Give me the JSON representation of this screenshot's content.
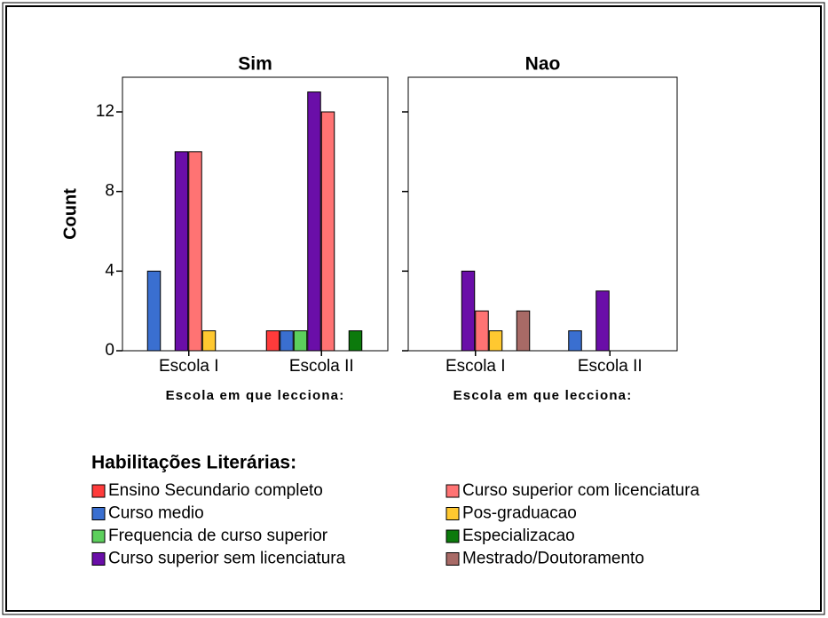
{
  "chart_data": [
    {
      "type": "bar",
      "title": "Sim",
      "ylabel": "Count",
      "xlabel": "Escola em que lecciona:",
      "categories": [
        "Escola I",
        "Escola II"
      ],
      "ylim": [
        0,
        13.74
      ],
      "yticks": [
        0,
        4,
        8,
        12
      ],
      "ytick_labels": true,
      "series": [
        {
          "name": "Ensino Secundario completo",
          "color": "#ff3b3b",
          "values": [
            0,
            1
          ]
        },
        {
          "name": "Curso medio",
          "color": "#3a6fd0",
          "values": [
            4,
            1
          ]
        },
        {
          "name": "Frequencia de curso superior",
          "color": "#5ccf5c",
          "values": [
            0,
            1
          ]
        },
        {
          "name": "Curso superior sem licenciatura",
          "color": "#6a0ea8",
          "values": [
            10,
            13
          ]
        },
        {
          "name": "Curso superior com licenciatura",
          "color": "#ff7373",
          "values": [
            10,
            12
          ]
        },
        {
          "name": "Pos-graduacao",
          "color": "#ffc830",
          "values": [
            1,
            0
          ]
        },
        {
          "name": "Especializacao",
          "color": "#0c7a0c",
          "values": [
            0,
            1
          ]
        },
        {
          "name": "Mestrado/Doutoramento",
          "color": "#a86a66",
          "values": [
            0,
            0
          ]
        }
      ]
    },
    {
      "type": "bar",
      "title": "Nao",
      "xlabel": "Escola em que lecciona:",
      "categories": [
        "Escola I",
        "Escola II"
      ],
      "ylim": [
        0,
        13.74
      ],
      "yticks": [
        0,
        4,
        8,
        12
      ],
      "ytick_labels": false,
      "series": [
        {
          "name": "Ensino Secundario completo",
          "color": "#ff3b3b",
          "values": [
            0,
            0
          ]
        },
        {
          "name": "Curso medio",
          "color": "#3a6fd0",
          "values": [
            0,
            1
          ]
        },
        {
          "name": "Frequencia de curso superior",
          "color": "#5ccf5c",
          "values": [
            0,
            0
          ]
        },
        {
          "name": "Curso superior sem licenciatura",
          "color": "#6a0ea8",
          "values": [
            4,
            3
          ]
        },
        {
          "name": "Curso superior com licenciatura",
          "color": "#ff7373",
          "values": [
            2,
            0
          ]
        },
        {
          "name": "Pos-graduacao",
          "color": "#ffc830",
          "values": [
            1,
            0
          ]
        },
        {
          "name": "Especializacao",
          "color": "#0c7a0c",
          "values": [
            0,
            0
          ]
        },
        {
          "name": "Mestrado/Doutoramento",
          "color": "#a86a66",
          "values": [
            2,
            0
          ]
        }
      ]
    }
  ],
  "legend_title": "Habilitações Literárias:"
}
